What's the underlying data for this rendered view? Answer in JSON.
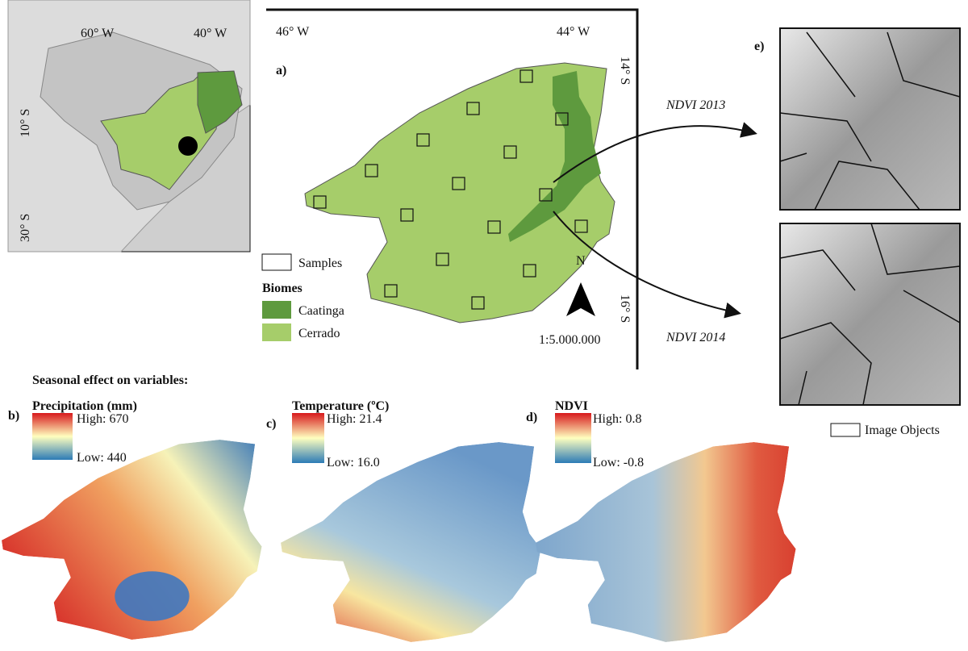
{
  "inset_map": {
    "lon_labels": [
      "60° W",
      "40° W"
    ],
    "lat_labels": [
      "10° S",
      "30° S"
    ]
  },
  "study_area": {
    "panel": "a)",
    "lon_labels": [
      "46° W",
      "44° W"
    ],
    "lat_labels": [
      "14° S",
      "16° S"
    ],
    "north": "N",
    "scale": "1:5.000.000",
    "legend": {
      "samples": "Samples",
      "biomes_title": "Biomes",
      "biomes": [
        "Caatinga",
        "Cerrado"
      ]
    }
  },
  "ndvi_images": {
    "panel": "e)",
    "arrows": [
      "NDVI 2013",
      "NDVI 2014"
    ],
    "legend": "Image Objects"
  },
  "seasonal": {
    "title": "Seasonal effect on variables:",
    "panels": [
      {
        "panel": "b)",
        "name": "Precipitation (mm)",
        "high": "High: 670",
        "low": "Low: 440"
      },
      {
        "panel": "c)",
        "name": "Temperature (ºC)",
        "high": "High: 21.4",
        "low": "Low: 16.0"
      },
      {
        "panel": "d)",
        "name": "NDVI",
        "high": "High: 0.8",
        "low": "Low: -0.8"
      }
    ]
  }
}
